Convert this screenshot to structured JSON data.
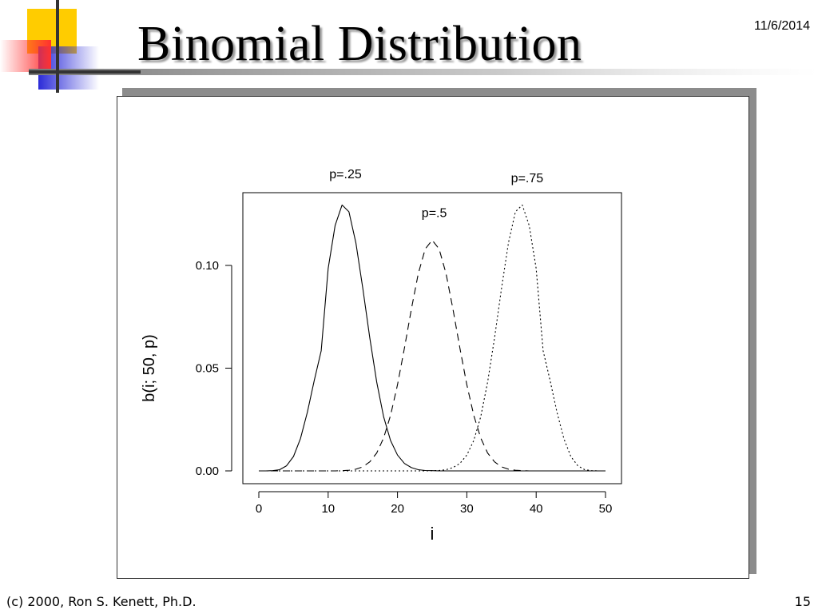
{
  "slide": {
    "title": "Binomial Distribution",
    "date": "11/6/2014",
    "footer_left": "(c) 2000, Ron S. Kenett, Ph.D.",
    "page_number": "15"
  },
  "chart_data": {
    "type": "line",
    "title": "",
    "xlabel": "i",
    "ylabel": "b(i; 50, p)",
    "xlim": [
      0,
      50
    ],
    "ylim": [
      0,
      0.13
    ],
    "x_ticks": [
      0,
      10,
      20,
      30,
      40,
      50
    ],
    "x_tick_labels": [
      "0",
      "10",
      "20",
      "30",
      "40",
      "50"
    ],
    "y_ticks": [
      0,
      0.05,
      0.1
    ],
    "y_tick_labels": [
      "0.00",
      "0.05",
      "0.10"
    ],
    "grid": false,
    "legend": "none",
    "x": [
      0,
      1,
      2,
      3,
      4,
      5,
      6,
      7,
      8,
      9,
      10,
      11,
      12,
      13,
      14,
      15,
      16,
      17,
      18,
      19,
      20,
      21,
      22,
      23,
      24,
      25,
      26,
      27,
      28,
      29,
      30,
      31,
      32,
      33,
      34,
      35,
      36,
      37,
      38,
      39,
      40,
      41,
      42,
      43,
      44,
      45,
      46,
      47,
      48,
      49,
      50
    ],
    "series": [
      {
        "name": "p=.25",
        "line_style": "solid",
        "values": [
          0.0,
          0.0,
          0.0001,
          0.0006,
          0.0025,
          0.007,
          0.0157,
          0.0286,
          0.044,
          0.0585,
          0.0985,
          0.1194,
          0.1294,
          0.1261,
          0.111,
          0.0888,
          0.0648,
          0.0432,
          0.0264,
          0.0148,
          0.0077,
          0.0036,
          0.0016,
          0.0006,
          0.0002,
          0.0001,
          0.0,
          0.0,
          0.0,
          0.0,
          0.0,
          0.0,
          0.0,
          0.0,
          0.0,
          0.0,
          0.0,
          0.0,
          0.0,
          0.0,
          0.0,
          0.0,
          0.0,
          0.0,
          0.0,
          0.0,
          0.0,
          0.0,
          0.0,
          0.0,
          0.0
        ]
      },
      {
        "name": "p=.5",
        "line_style": "dashed",
        "values": [
          0.0,
          0.0,
          0.0,
          0.0,
          0.0,
          0.0,
          0.0,
          0.0,
          0.0,
          0.0,
          0.0,
          0.0,
          0.0001,
          0.0003,
          0.0008,
          0.002,
          0.0044,
          0.0087,
          0.016,
          0.027,
          0.0419,
          0.0598,
          0.0788,
          0.096,
          0.108,
          0.1123,
          0.108,
          0.096,
          0.0788,
          0.0598,
          0.0419,
          0.027,
          0.016,
          0.0087,
          0.0044,
          0.002,
          0.0008,
          0.0003,
          0.0001,
          0.0,
          0.0,
          0.0,
          0.0,
          0.0,
          0.0,
          0.0,
          0.0,
          0.0,
          0.0,
          0.0,
          0.0
        ]
      },
      {
        "name": "p=.75",
        "line_style": "dotted",
        "values": [
          0.0,
          0.0,
          0.0,
          0.0,
          0.0,
          0.0,
          0.0,
          0.0,
          0.0,
          0.0,
          0.0,
          0.0,
          0.0,
          0.0,
          0.0,
          0.0,
          0.0,
          0.0,
          0.0,
          0.0,
          0.0,
          0.0,
          0.0,
          0.0,
          0.0,
          0.0001,
          0.0002,
          0.0006,
          0.0016,
          0.0036,
          0.0077,
          0.0148,
          0.0264,
          0.0432,
          0.0648,
          0.0888,
          0.111,
          0.1261,
          0.1294,
          0.1194,
          0.0985,
          0.0585,
          0.044,
          0.0286,
          0.0157,
          0.007,
          0.0025,
          0.0006,
          0.0001,
          0.0,
          0.0
        ]
      }
    ],
    "annotations": [
      {
        "text": "p=.25",
        "x": 12.5,
        "y": 0.1425
      },
      {
        "text": "p=.5",
        "x": 25.3,
        "y": 0.1235
      },
      {
        "text": "p=.75",
        "x": 38.7,
        "y": 0.1405
      }
    ]
  }
}
